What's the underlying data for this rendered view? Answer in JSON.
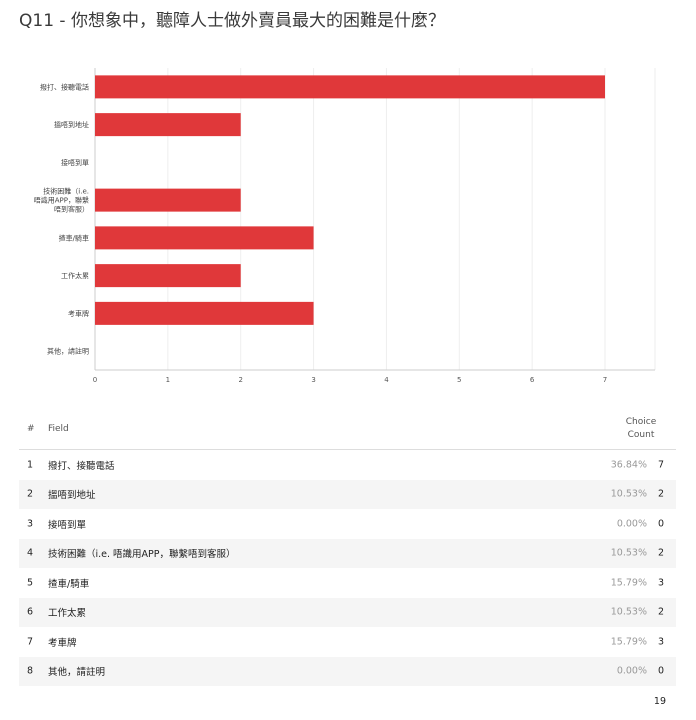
{
  "question_title": "Q11 - 你想象中，聽障人士做外賣員最大的困難是什麼？",
  "chart_data": {
    "type": "bar",
    "orientation": "horizontal",
    "categories": [
      [
        "撥打、接聽電話"
      ],
      [
        "搵唔到地址"
      ],
      [
        "接唔到單"
      ],
      [
        "技術困難（i.e.",
        "唔識用APP，聯繫",
        "唔到客服）"
      ],
      [
        "揸車/騎車"
      ],
      [
        "工作太累"
      ],
      [
        "考車牌"
      ],
      [
        "其他，請註明"
      ]
    ],
    "values": [
      7,
      2,
      0,
      2,
      3,
      2,
      3,
      0
    ],
    "xlim": [
      0,
      7
    ],
    "xticks": [
      0,
      1,
      2,
      3,
      4,
      5,
      6,
      7
    ],
    "bar_color": "#e0383a",
    "grid": true
  },
  "table": {
    "headers": {
      "num": "#",
      "field": "Field",
      "choice": "Choice",
      "count": "Count"
    },
    "rows": [
      {
        "num": "1",
        "field": "撥打、接聽電話",
        "pct": "36.84%",
        "count": "7"
      },
      {
        "num": "2",
        "field": "搵唔到地址",
        "pct": "10.53%",
        "count": "2"
      },
      {
        "num": "3",
        "field": "接唔到單",
        "pct": "0.00%",
        "count": "0"
      },
      {
        "num": "4",
        "field": "技術困難（i.e. 唔識用APP，聯繫唔到客服）",
        "pct": "10.53%",
        "count": "2"
      },
      {
        "num": "5",
        "field": "揸車/騎車",
        "pct": "15.79%",
        "count": "3"
      },
      {
        "num": "6",
        "field": "工作太累",
        "pct": "10.53%",
        "count": "2"
      },
      {
        "num": "7",
        "field": "考車牌",
        "pct": "15.79%",
        "count": "3"
      },
      {
        "num": "8",
        "field": "其他，請註明",
        "pct": "0.00%",
        "count": "0"
      }
    ],
    "total": "19"
  }
}
